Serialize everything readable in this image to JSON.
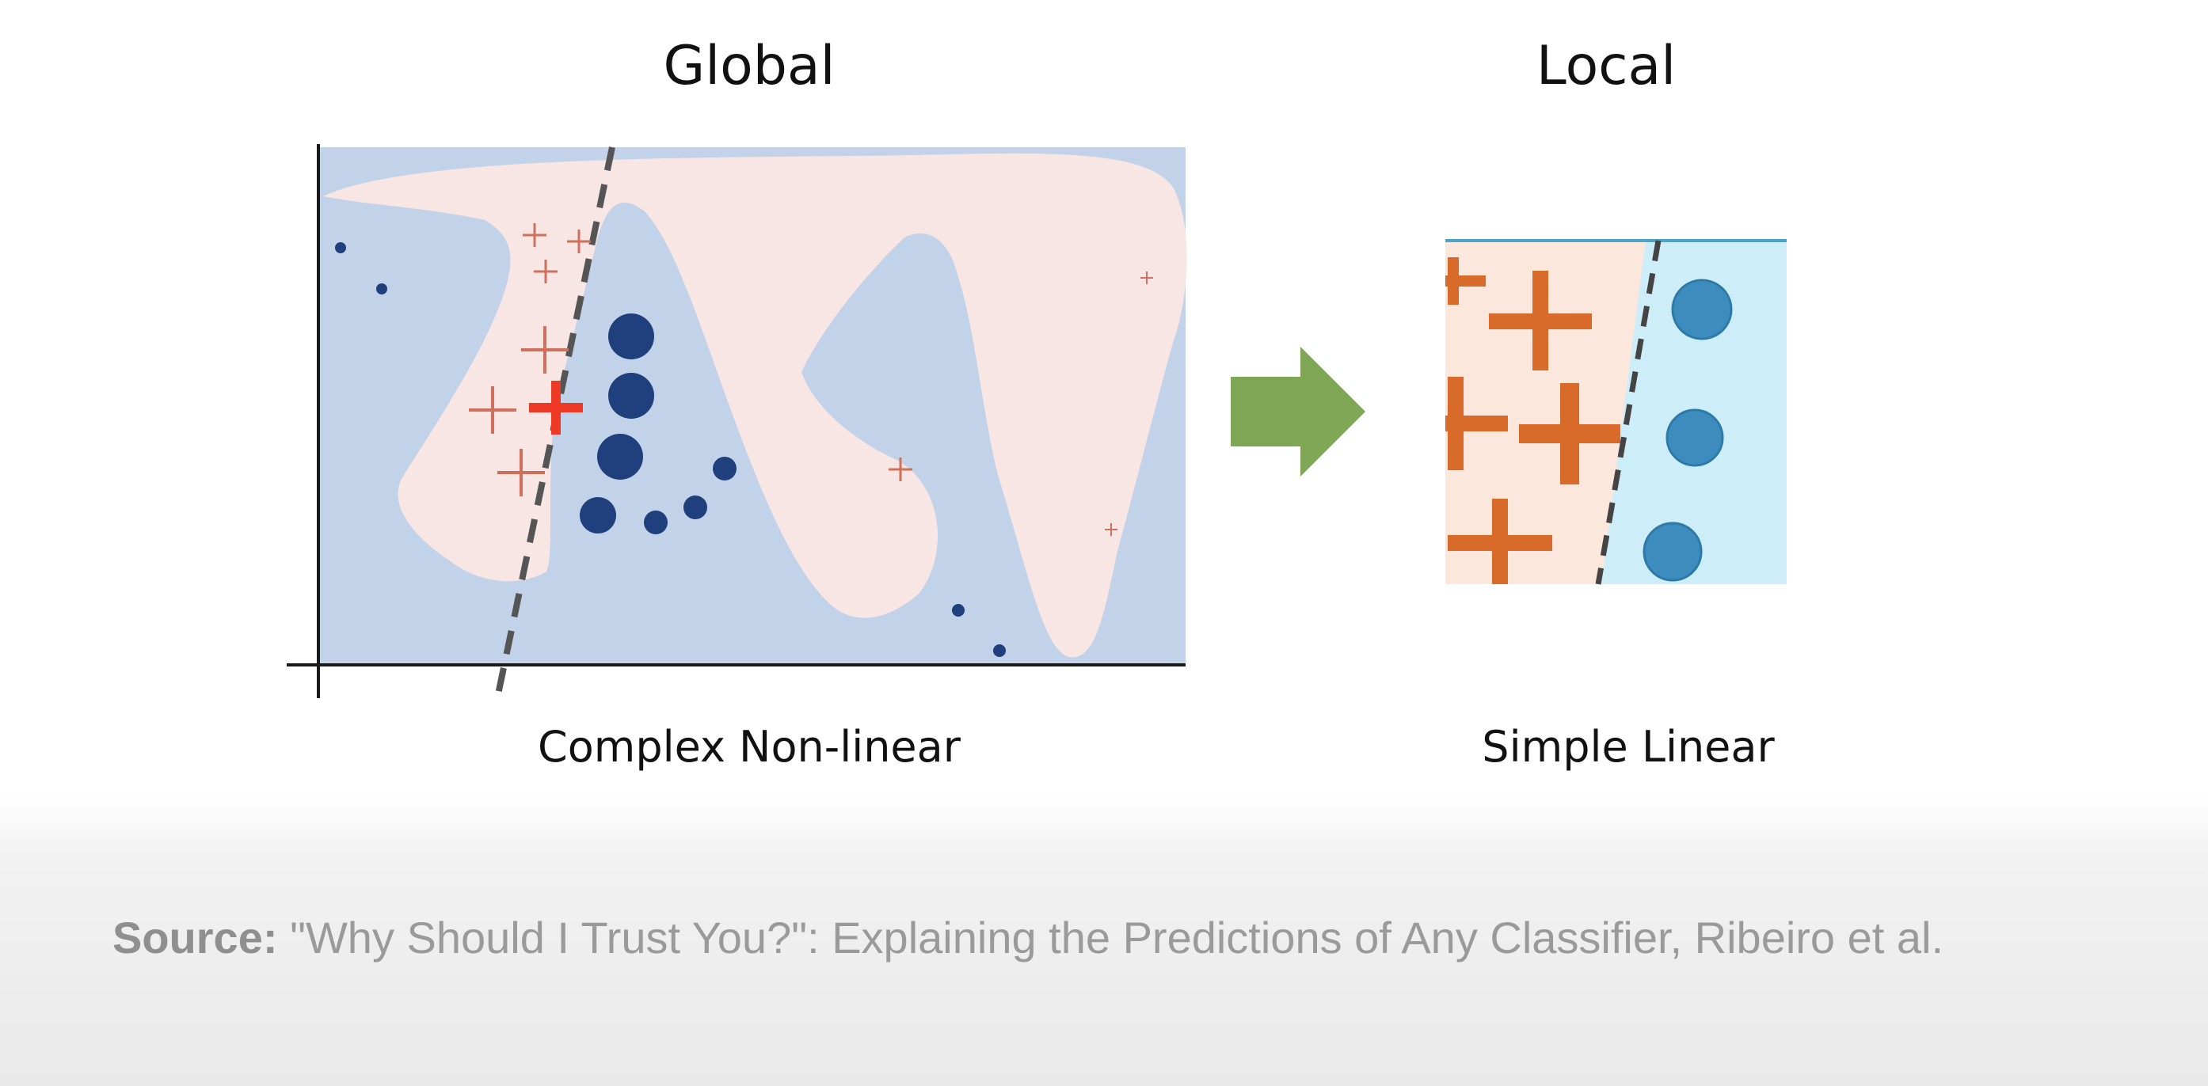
{
  "titles": {
    "global": "Global",
    "local": "Local"
  },
  "captions": {
    "global": "Complex Non-linear",
    "local": "Simple Linear"
  },
  "source": {
    "label": "Source:",
    "text": "\"Why Should I Trust You?\": Explaining the Predictions of Any Classifier, Ribeiro et al."
  },
  "colors": {
    "background_region": "#c2d2e8",
    "blob_region": "#f7e6e3",
    "plus_marker": "#d0705c",
    "highlight_plus": "#ee3a24",
    "circle_marker": "#1f3f7d",
    "boundary_line": "#555555",
    "arrow": "#7fa654",
    "local_left_region": "#fbe7dc",
    "local_right_region": "#cdeef9",
    "local_plus": "#d86a2a",
    "local_circle": "#3d8cbd"
  },
  "icons": {
    "arrow": "right-arrow-icon"
  }
}
